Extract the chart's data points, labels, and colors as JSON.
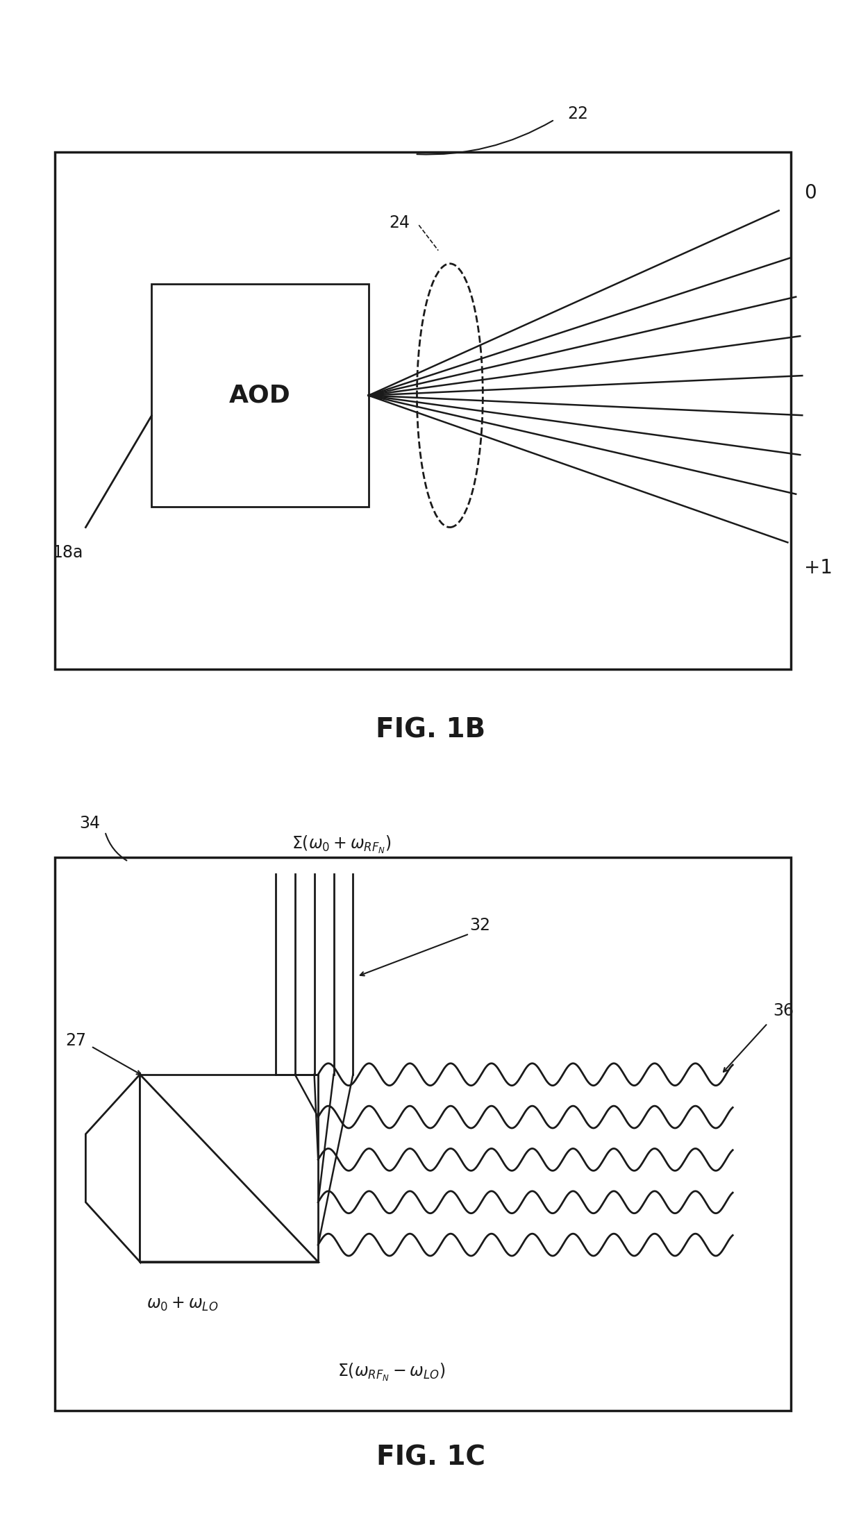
{
  "bg_color": "#ffffff",
  "line_color": "#1a1a1a",
  "fig1b": {
    "title": "FIG. 1B",
    "label_22": "22",
    "label_18a": "18a",
    "label_AOD": "AOD",
    "label_24": "24",
    "label_0": "0",
    "label_plus1": "+1"
  },
  "fig1c": {
    "title": "FIG. 1C",
    "label_34": "34",
    "label_27": "27",
    "label_32": "32",
    "label_36": "36",
    "label_top": "$\\Sigma(\\omega_0 + \\omega_{RF_N})$",
    "label_bottom_left": "$\\omega_0 + \\omega_{LO}$",
    "label_bottom": "$\\Sigma(\\omega_{RF_N} - \\omega_{LO})$"
  }
}
